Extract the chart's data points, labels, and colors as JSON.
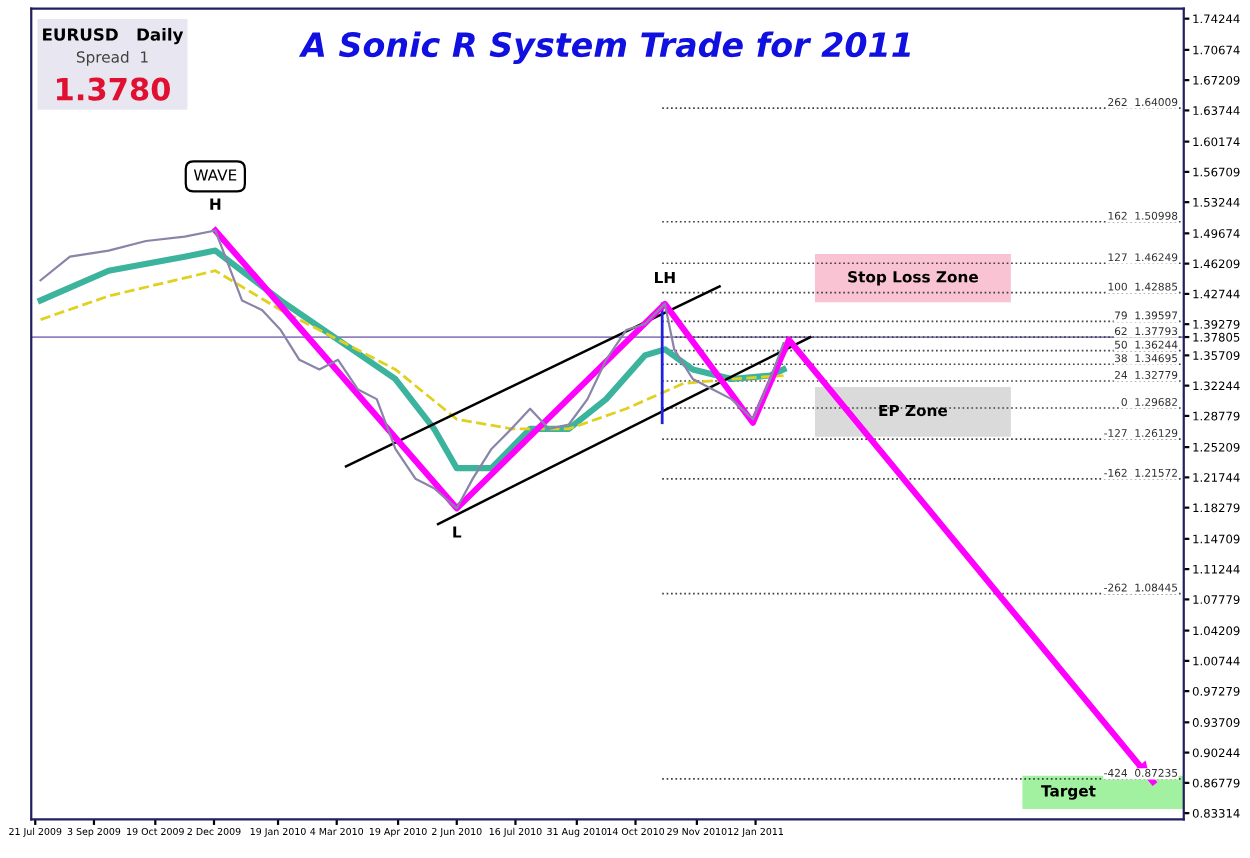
{
  "chart_data": {
    "type": "line",
    "title": "A Sonic R System Trade for 2011",
    "xlim": [
      "2009-07-18",
      "2011-11-29"
    ],
    "ylim": [
      0.826,
      1.754
    ],
    "xticks": [
      {
        "value": "2009-07-21",
        "label": "21 Jul 2009"
      },
      {
        "value": "2009-09-03",
        "label": "3 Sep 2009"
      },
      {
        "value": "2009-10-19",
        "label": "19 Oct 2009"
      },
      {
        "value": "2009-12-02",
        "label": "2 Dec 2009"
      },
      {
        "value": "2010-01-19",
        "label": "19 Jan 2010"
      },
      {
        "value": "2010-03-04",
        "label": "4 Mar 2010"
      },
      {
        "value": "2010-04-19",
        "label": "19 Apr 2010"
      },
      {
        "value": "2010-06-02",
        "label": "2 Jun 2010"
      },
      {
        "value": "2010-07-16",
        "label": "16 Jul 2010"
      },
      {
        "value": "2010-08-31",
        "label": "31 Aug 2010"
      },
      {
        "value": "2010-10-14",
        "label": "14 Oct 2010"
      },
      {
        "value": "2010-11-29",
        "label": "29 Nov 2010"
      },
      {
        "value": "2011-01-12",
        "label": "12 Jan 2011"
      }
    ],
    "yticks": [
      1.74244,
      1.70674,
      1.67209,
      1.63744,
      1.60174,
      1.56709,
      1.53244,
      1.49674,
      1.46209,
      1.42744,
      1.39279,
      1.37805,
      1.35709,
      1.32244,
      1.28779,
      1.25209,
      1.21744,
      1.18279,
      1.14709,
      1.11244,
      1.07779,
      1.04209,
      1.00744,
      0.97279,
      0.93709,
      0.90244,
      0.86779,
      0.83314
    ],
    "grid": false,
    "bands": [
      {
        "axis": "y",
        "from": 1.418,
        "to": 1.473,
        "label": "Stop Loss Zone",
        "color": "#f8b8cc"
      },
      {
        "axis": "y",
        "from": 1.264,
        "to": 1.321,
        "label": "EP Zone",
        "color": "#d4d4d4"
      },
      {
        "axis": "y",
        "from": 0.838,
        "to": 0.876,
        "label": "Target",
        "color": "#90ee90"
      }
    ],
    "series": [
      {
        "color": "#8a84a8",
        "x": [
          "2009-07-25",
          "2009-08-16",
          "2009-09-14",
          "2009-10-12",
          "2009-11-10",
          "2009-12-03",
          "2009-12-23",
          "2010-01-07",
          "2010-01-21",
          "2010-02-04",
          "2010-02-19",
          "2010-03-05",
          "2010-03-20",
          "2010-04-03",
          "2010-04-17",
          "2010-05-02",
          "2010-05-16",
          "2010-06-02",
          "2010-06-14",
          "2010-06-28",
          "2010-07-13",
          "2010-07-27",
          "2010-08-10",
          "2010-08-25",
          "2010-09-08",
          "2010-09-22",
          "2010-10-07",
          "2010-10-21",
          "2010-11-05",
          "2010-11-12",
          "2010-11-26",
          "2010-12-11",
          "2010-12-25",
          "2011-01-10",
          "2011-01-23",
          "2011-02-02"
        ],
        "values": [
          1.443,
          1.47,
          1.477,
          1.488,
          1.493,
          1.5,
          1.42,
          1.409,
          1.386,
          1.352,
          1.341,
          1.352,
          1.318,
          1.307,
          1.25,
          1.216,
          1.205,
          1.182,
          1.216,
          1.25,
          1.273,
          1.296,
          1.273,
          1.278,
          1.307,
          1.352,
          1.386,
          1.393,
          1.416,
          1.364,
          1.33,
          1.318,
          1.307,
          1.284,
          1.33,
          1.371
        ]
      },
      {
        "color": "#3cb39c",
        "x": [
          "2009-07-25",
          "2009-09-14",
          "2009-11-10",
          "2009-12-03",
          "2010-01-21",
          "2010-03-05",
          "2010-04-17",
          "2010-05-16",
          "2010-06-02",
          "2010-06-28",
          "2010-07-27",
          "2010-08-25",
          "2010-09-22",
          "2010-10-21",
          "2010-11-05",
          "2010-11-26",
          "2010-12-25",
          "2011-01-23",
          "2011-02-02"
        ],
        "values": [
          1.42,
          1.454,
          1.47,
          1.477,
          1.42,
          1.375,
          1.33,
          1.273,
          1.228,
          1.228,
          1.273,
          1.273,
          1.307,
          1.357,
          1.364,
          1.341,
          1.33,
          1.334,
          1.341
        ]
      },
      {
        "color": "#e0d020",
        "line_style": "dashed",
        "x": [
          "2009-07-25",
          "2009-09-14",
          "2009-12-03",
          "2010-01-21",
          "2010-03-05",
          "2010-04-17",
          "2010-06-02",
          "2010-07-13",
          "2010-08-25",
          "2010-10-07",
          "2010-11-19",
          "2010-12-25",
          "2011-02-02"
        ],
        "values": [
          1.398,
          1.425,
          1.454,
          1.409,
          1.375,
          1.341,
          1.284,
          1.273,
          1.273,
          1.296,
          1.325,
          1.33,
          1.334
        ]
      },
      {
        "color": "#000000",
        "x": [
          "2010-03-11",
          "2010-12-16"
        ],
        "values": [
          1.23,
          1.436
        ]
      },
      {
        "color": "#000000",
        "x": [
          "2010-05-19",
          "2011-02-22"
        ],
        "values": [
          1.164,
          1.378
        ]
      },
      {
        "color": "#2020e0",
        "x": [
          "2010-11-03",
          "2010-11-03"
        ],
        "values": [
          1.416,
          1.28
        ]
      },
      {
        "color": "#ff00ff",
        "x": [
          "2009-12-03",
          "2010-06-02",
          "2010-11-05",
          "2011-01-10",
          "2011-02-06",
          "2011-11-06"
        ],
        "values": [
          1.5,
          1.182,
          1.416,
          1.28,
          1.375,
          0.869
        ]
      }
    ],
    "ref_lines": [
      {
        "axis": "y",
        "value": 1.378,
        "label": null,
        "color": "#9080c0"
      },
      {
        "axis": "y",
        "value": 1.64009,
        "label": "262  1.64009",
        "color": "#404040"
      },
      {
        "axis": "y",
        "value": 1.50998,
        "label": "162  1.50998",
        "color": "#404040"
      },
      {
        "axis": "y",
        "value": 1.46249,
        "label": "127  1.46249",
        "color": "#404040"
      },
      {
        "axis": "y",
        "value": 1.42885,
        "label": "100  1.42885",
        "color": "#404040"
      },
      {
        "axis": "y",
        "value": 1.39597,
        "label": "79  1.39597",
        "color": "#404040"
      },
      {
        "axis": "y",
        "value": 1.37793,
        "label": "62  1.37793",
        "color": "#404040"
      },
      {
        "axis": "y",
        "value": 1.36244,
        "label": "50  1.36244",
        "color": "#404040"
      },
      {
        "axis": "y",
        "value": 1.34695,
        "label": "38  1.34695",
        "color": "#404040"
      },
      {
        "axis": "y",
        "value": 1.32779,
        "label": "24  1.32779",
        "color": "#404040"
      },
      {
        "axis": "y",
        "value": 1.29682,
        "label": "0  1.29682",
        "color": "#404040"
      },
      {
        "axis": "y",
        "value": 1.26129,
        "label": "-127  1.26129",
        "color": "#404040"
      },
      {
        "axis": "y",
        "value": 1.21572,
        "label": "-162  1.21572",
        "color": "#404040"
      },
      {
        "axis": "y",
        "value": 1.08445,
        "label": "-262  1.08445",
        "color": "#404040"
      },
      {
        "axis": "y",
        "value": 0.87235,
        "label": "-424  0.87235",
        "color": "#404040"
      }
    ],
    "annotations": [
      "EURUSD   Daily",
      "Spread  1",
      "1.3780",
      "WAVE",
      {
        "text": "H",
        "x": "2009-12-03",
        "y": 1.5
      },
      {
        "text": "L",
        "x": "2010-06-02",
        "y": 1.182
      },
      {
        "text": "LH",
        "x": "2010-11-05",
        "y": 1.416
      }
    ]
  }
}
